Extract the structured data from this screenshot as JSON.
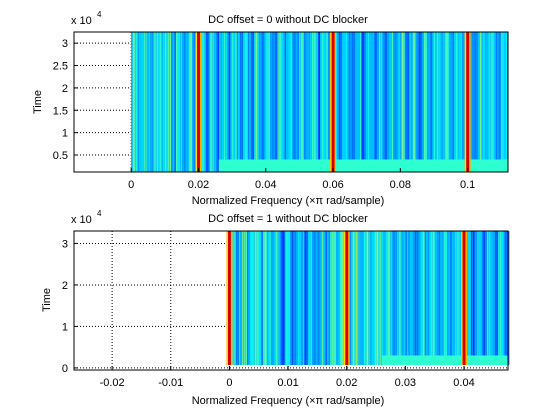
{
  "chart_data": [
    {
      "type": "heatmap",
      "title": "DC offset = 0 without DC blocker",
      "xlabel": "Normalized Frequency  (×π rad/sample)",
      "ylabel": "Time",
      "y_exponent_label": "x 10",
      "y_exponent_power": "4",
      "xlim": [
        -0.017,
        0.112
      ],
      "ylim": [
        0.12,
        3.25
      ],
      "x_ticks": [
        0,
        0.02,
        0.04,
        0.06,
        0.08,
        0.1
      ],
      "x_tick_labels": [
        "0",
        "0.02",
        "0.04",
        "0.06",
        "0.08",
        "0.1"
      ],
      "y_ticks": [
        0.5,
        1,
        1.5,
        2,
        2.5,
        3
      ],
      "y_tick_labels": [
        "0.5",
        "1",
        "1.5",
        "2",
        "2.5",
        "3"
      ],
      "grid": true,
      "data_x_start": 0,
      "data_y_range": [
        0.12,
        3.25
      ],
      "band_top": 0.4,
      "band_start_x": 0.026,
      "ridges": [
        0.02,
        0.06,
        0.1
      ],
      "ridge_colors": [
        "#d40000",
        "#ffe000"
      ]
    },
    {
      "type": "heatmap",
      "title": "DC offset = 1 without DC blocker",
      "xlabel": "Normalized Frequency  (×π rad/sample)",
      "ylabel": "Time",
      "y_exponent_label": "x 10",
      "y_exponent_power": "4",
      "xlim": [
        -0.0265,
        0.0475
      ],
      "ylim": [
        -0.05,
        3.3
      ],
      "x_ticks": [
        -0.02,
        -0.01,
        0,
        0.01,
        0.02,
        0.03,
        0.04
      ],
      "x_tick_labels": [
        "-0.02",
        "-0.01",
        "0",
        "0.01",
        "0.02",
        "0.03",
        "0.04"
      ],
      "y_ticks": [
        0,
        1,
        2,
        3
      ],
      "y_tick_labels": [
        "0",
        "1",
        "2",
        "3"
      ],
      "grid": true,
      "data_x_start": 0,
      "data_y_range": [
        0.07,
        3.3
      ],
      "band_top": 0.3,
      "band_start_x": 0.026,
      "ridges": [
        0,
        0.02,
        0.04
      ],
      "ridge_colors": [
        "#d40000",
        "#ffe000"
      ]
    }
  ]
}
